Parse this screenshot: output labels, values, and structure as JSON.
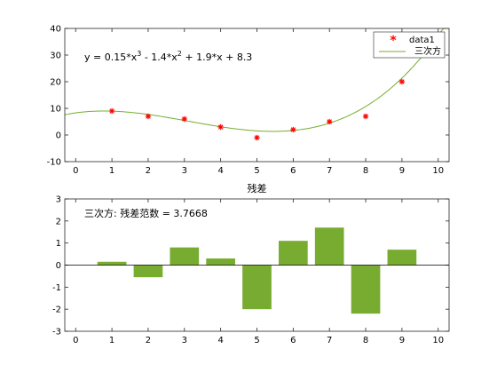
{
  "chart_data": [
    {
      "type": "scatter",
      "title": "",
      "xlabel": "",
      "ylabel": "",
      "xlim": [
        -0.3,
        10.3
      ],
      "ylim": [
        -10,
        40
      ],
      "x_ticks": [
        0,
        1,
        2,
        3,
        4,
        5,
        6,
        7,
        8,
        9,
        10
      ],
      "y_ticks": [
        -10,
        0,
        10,
        20,
        30,
        40
      ],
      "legend_position": "top-right",
      "series": [
        {
          "name": "data1",
          "kind": "marker",
          "marker": "asterisk",
          "color": "#ff0000",
          "x": [
            1,
            2,
            3,
            4,
            5,
            6,
            7,
            8,
            9
          ],
          "y": [
            9,
            7,
            6,
            3,
            -1,
            2,
            5,
            7,
            20
          ]
        },
        {
          "name": "三次方",
          "kind": "line",
          "color": "#77ac30",
          "fit_coefficients": [
            0.15,
            -1.4,
            1.9,
            8.3
          ]
        }
      ],
      "equation": {
        "prefix": "y = 0.15*x",
        "exp1": "3",
        "middle": " - 1.4*x",
        "exp2": "2",
        "suffix": " + 1.9*x + 8.3"
      }
    },
    {
      "type": "bar",
      "title": "残差",
      "xlabel": "",
      "ylabel": "",
      "xlim": [
        -0.3,
        10.3
      ],
      "ylim": [
        -3,
        3
      ],
      "x_ticks": [
        0,
        1,
        2,
        3,
        4,
        5,
        6,
        7,
        8,
        9,
        10
      ],
      "y_ticks": [
        -3,
        -2,
        -1,
        0,
        1,
        2,
        3
      ],
      "bar_color": "#77ac30",
      "categories": [
        1,
        2,
        3,
        4,
        5,
        6,
        7,
        8,
        9
      ],
      "values": [
        0.15,
        -0.55,
        0.8,
        0.3,
        -2.0,
        1.1,
        1.7,
        -2.2,
        0.7
      ],
      "annotation": "三次方: 残差范数 = 3.7668"
    }
  ]
}
